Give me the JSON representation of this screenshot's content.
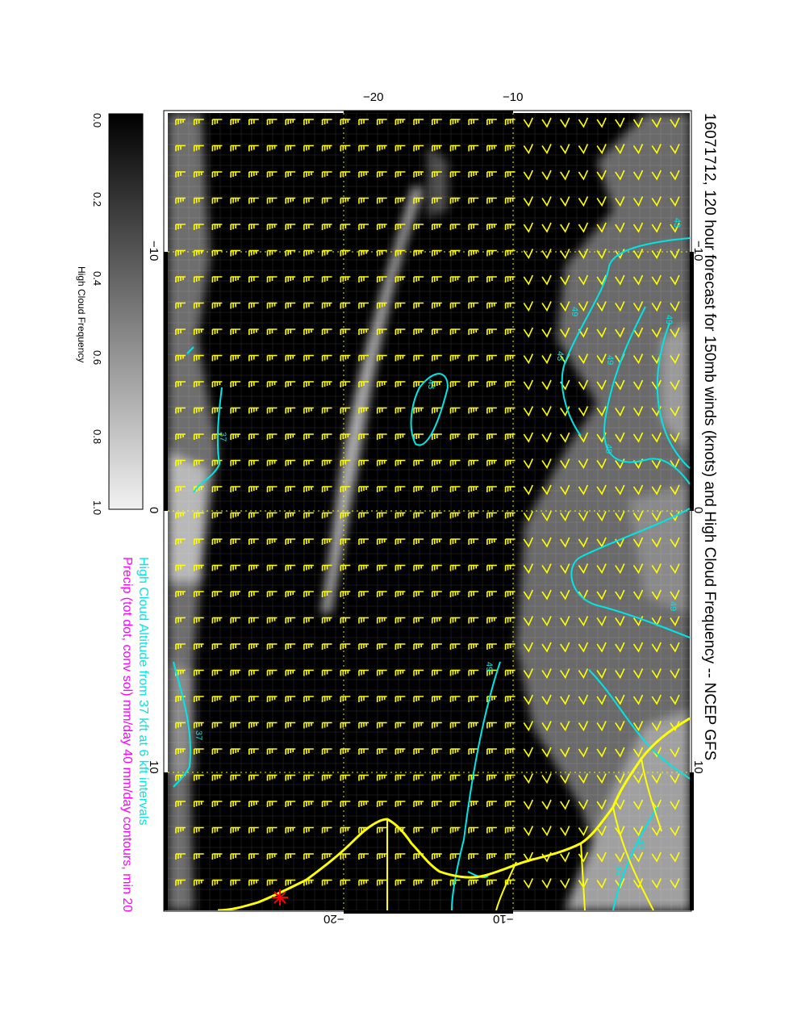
{
  "title": "16071712, 120 hour forecast for 150mb winds (knots) and High Cloud Frequency -- NCEP GFS",
  "subtitle_cyan": "High Cloud Altitude from 37 kft at 6 kft intervals",
  "subtitle_magenta": "Precip (tot dot, conv sol) mm/day 40 mm/day contours, min 20",
  "colorbar": {
    "label": "High Cloud Frequency",
    "ticks": [
      "0.0",
      "0.2",
      "0.4",
      "0.6",
      "0.8",
      "1.0"
    ]
  },
  "axes": {
    "top_ticks": [
      "−20",
      "−10"
    ],
    "bottom_ticks": [
      "−20",
      "−10"
    ],
    "left_ticks": [
      "−10",
      "0",
      "10"
    ],
    "right_ticks": [
      "−10",
      "0",
      "10"
    ]
  },
  "contour_labels": [
    "37",
    "43",
    "49",
    "49",
    "43",
    "49",
    "49",
    "43",
    "49",
    "37",
    "43",
    "49",
    "49"
  ],
  "colors": {
    "barb": "#ffff00",
    "contour": "#00e5e5",
    "coast": "#ffff00",
    "magenta": "#ff00ff",
    "marker": "#ff0000",
    "background": "#000000"
  },
  "marker": "red-star"
}
